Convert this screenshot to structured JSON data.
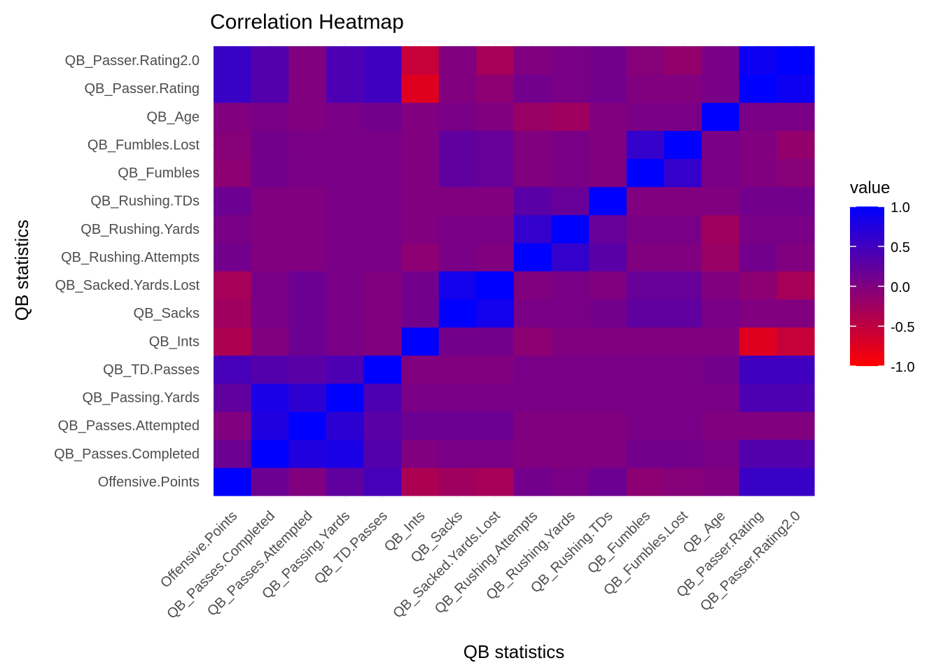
{
  "chart_data": {
    "type": "heatmap",
    "title": "Correlation Heatmap",
    "xlabel": "QB statistics",
    "ylabel": "QB statistics",
    "variables": [
      "Offensive.Points",
      "QB_Passes.Completed",
      "QB_Passes.Attempted",
      "QB_Passing.Yards",
      "QB_TD.Passes",
      "QB_Ints",
      "QB_Sacks",
      "QB_Sacked.Yards.Lost",
      "QB_Rushing.Attempts",
      "QB_Rushing.Yards",
      "QB_Rushing.TDs",
      "QB_Fumbles",
      "QB_Fumbles.Lost",
      "QB_Age",
      "QB_Passer.Rating",
      "QB_Passer.Rating2.0"
    ],
    "values": [
      [
        1.0,
        0.15,
        0.0,
        0.25,
        0.45,
        -0.35,
        -0.25,
        -0.3,
        0.1,
        0.05,
        0.15,
        -0.1,
        -0.05,
        0.0,
        0.55,
        0.55
      ],
      [
        0.15,
        1.0,
        0.75,
        0.8,
        0.35,
        0.0,
        0.05,
        0.05,
        0.0,
        0.0,
        0.0,
        0.1,
        0.1,
        0.05,
        0.35,
        0.35
      ],
      [
        0.0,
        0.75,
        1.0,
        0.65,
        0.3,
        0.15,
        0.15,
        0.15,
        0.0,
        0.0,
        0.0,
        0.05,
        0.05,
        0.0,
        0.0,
        0.0
      ],
      [
        0.25,
        0.8,
        0.65,
        1.0,
        0.4,
        0.05,
        0.05,
        0.05,
        0.05,
        0.05,
        0.05,
        0.05,
        0.05,
        0.05,
        0.4,
        0.4
      ],
      [
        0.45,
        0.35,
        0.3,
        0.4,
        1.0,
        0.0,
        0.0,
        0.0,
        0.05,
        0.05,
        0.05,
        0.05,
        0.05,
        0.1,
        0.5,
        0.5
      ],
      [
        -0.35,
        0.0,
        0.15,
        0.05,
        0.0,
        1.0,
        0.1,
        0.1,
        -0.1,
        0.0,
        0.0,
        0.0,
        0.0,
        0.0,
        -0.75,
        -0.55
      ],
      [
        -0.25,
        0.05,
        0.15,
        0.05,
        0.0,
        0.1,
        1.0,
        0.85,
        0.05,
        0.05,
        0.1,
        0.25,
        0.25,
        0.05,
        0.0,
        0.0
      ],
      [
        -0.3,
        0.05,
        0.15,
        0.05,
        0.0,
        0.1,
        0.85,
        1.0,
        0.0,
        0.05,
        0.0,
        0.2,
        0.2,
        0.0,
        -0.1,
        -0.3
      ],
      [
        0.1,
        0.0,
        0.0,
        0.05,
        0.05,
        -0.1,
        0.05,
        0.0,
        1.0,
        0.6,
        0.3,
        0.0,
        0.0,
        -0.2,
        0.1,
        0.0
      ],
      [
        0.05,
        0.0,
        0.0,
        0.05,
        0.05,
        0.0,
        0.05,
        0.05,
        0.6,
        1.0,
        0.2,
        0.05,
        0.05,
        -0.25,
        0.05,
        0.05
      ],
      [
        0.15,
        0.0,
        0.0,
        0.05,
        0.05,
        0.0,
        0.0,
        0.0,
        0.3,
        0.2,
        1.0,
        0.0,
        0.0,
        0.0,
        0.1,
        0.1
      ],
      [
        -0.1,
        0.1,
        0.05,
        0.05,
        0.05,
        0.0,
        0.25,
        0.2,
        0.0,
        0.05,
        0.0,
        1.0,
        0.6,
        0.05,
        0.0,
        -0.05
      ],
      [
        -0.05,
        0.1,
        0.05,
        0.05,
        0.05,
        0.0,
        0.25,
        0.2,
        0.0,
        0.05,
        0.0,
        0.6,
        1.0,
        0.05,
        0.0,
        -0.15
      ],
      [
        0.0,
        0.05,
        0.0,
        0.05,
        0.1,
        0.0,
        0.05,
        0.0,
        -0.2,
        -0.25,
        0.0,
        0.05,
        0.05,
        1.0,
        0.05,
        0.05
      ],
      [
        0.55,
        0.35,
        0.0,
        0.4,
        0.5,
        -0.75,
        0.0,
        -0.1,
        0.1,
        0.05,
        0.1,
        0.0,
        0.0,
        0.05,
        1.0,
        0.9
      ],
      [
        0.55,
        0.35,
        0.0,
        0.4,
        0.5,
        -0.55,
        0.0,
        -0.3,
        0.0,
        0.05,
        0.1,
        -0.05,
        -0.15,
        0.05,
        0.9,
        1.0
      ]
    ],
    "color_scale": {
      "low": "#ff0000",
      "high": "#0000ff",
      "limits": [
        -1,
        1
      ]
    },
    "legend": {
      "title": "value",
      "position": "right",
      "ticks": [
        1.0,
        0.5,
        0.0,
        -0.5,
        -1.0
      ],
      "tick_labels": [
        "1.0",
        "0.5",
        "0.0",
        "-0.5",
        "-1.0"
      ]
    },
    "grid": true
  }
}
